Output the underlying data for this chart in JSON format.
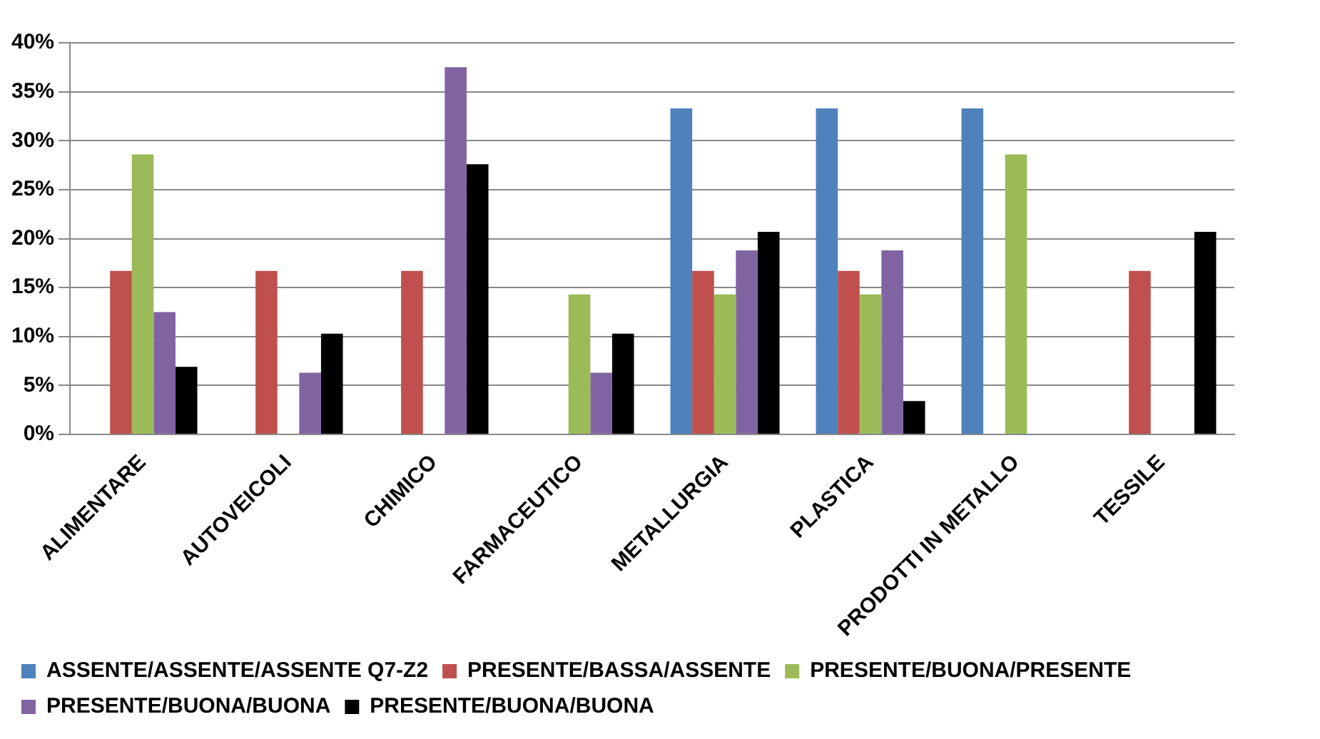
{
  "chart_data": {
    "type": "bar",
    "categories": [
      "ALIMENTARE",
      "AUTOVEICOLI",
      "CHIMICO",
      "FARMACEUTICO",
      "METALLURGIA",
      "PLASTICA",
      "PRODOTTI IN METALLO",
      "TESSILE"
    ],
    "series": [
      {
        "name": "ASSENTE/ASSENTE/ASSENTE Q7-Z2",
        "color": "#4f81bd",
        "values": [
          0,
          0,
          0,
          0,
          33.3,
          33.3,
          33.3,
          0
        ]
      },
      {
        "name": "PRESENTE/BASSA/ASSENTE",
        "color": "#c0504d",
        "values": [
          16.7,
          16.7,
          16.7,
          0,
          16.7,
          16.7,
          0,
          16.7
        ]
      },
      {
        "name": "PRESENTE/BUONA/PRESENTE",
        "color": "#9bbb59",
        "values": [
          28.6,
          0,
          0,
          14.3,
          14.3,
          14.3,
          28.6,
          0
        ]
      },
      {
        "name": "PRESENTE/BUONA/BUONA",
        "color": "#8064a2",
        "values": [
          12.5,
          6.3,
          37.5,
          6.3,
          18.8,
          18.8,
          0,
          0
        ]
      },
      {
        "name": "PRESENTE/BUONA/BUONA",
        "color": "#000000",
        "values": [
          6.9,
          10.3,
          27.6,
          10.3,
          20.7,
          3.4,
          0,
          20.7
        ]
      }
    ],
    "ylim": [
      0,
      40
    ],
    "yticks": [
      {
        "value": 0,
        "label": "0%"
      },
      {
        "value": 5,
        "label": "5%"
      },
      {
        "value": 10,
        "label": "10%"
      },
      {
        "value": 15,
        "label": "15%"
      },
      {
        "value": 20,
        "label": "20%"
      },
      {
        "value": 25,
        "label": "25%"
      },
      {
        "value": 30,
        "label": "30%"
      },
      {
        "value": 35,
        "label": "35%"
      },
      {
        "value": 40,
        "label": "40%"
      }
    ],
    "grid": "y",
    "legend": "bottom"
  }
}
